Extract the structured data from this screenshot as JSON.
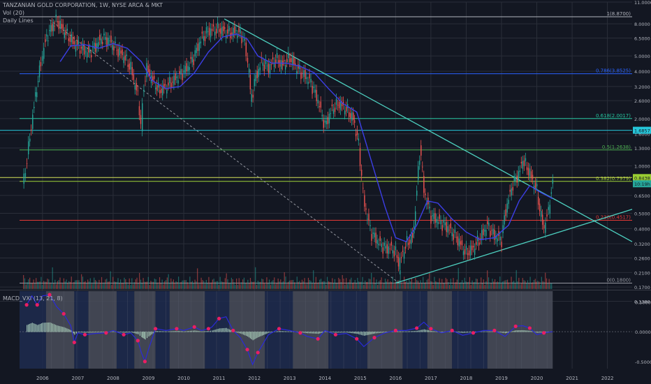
{
  "header": {
    "title": "TANZANIAN GOLD CORPORATION, 1W, NYSE ARCA & MKT",
    "indicator_volume": "Vol (20)",
    "indicator_lines": "Daily Lines"
  },
  "macd_panel": {
    "label": "MACD_VXI (13, 21, 8)"
  },
  "colors": {
    "background": "#131722",
    "grid": "#2a2e39",
    "price_line": "#26a69a",
    "price_down": "#ef5350",
    "ma_line": "#3c3ee6",
    "trendline": "#4dd0c0",
    "dashed": "#9598a1",
    "fib_1": "#b2b5be",
    "fib_786": "#2962ff",
    "fib_618": "#26c6a0",
    "fib_5": "#4caf50",
    "fib_382": "#9acd32",
    "fib_236": "#e53935",
    "fib_0": "#9598a1",
    "macd_bg_blue": "#1e2b4f",
    "macd_bg_gray": "#4a4e5a",
    "macd_hist": "#b8e0c8",
    "macd_line": "#2a2ad8",
    "macd_dot": "#e91e63"
  },
  "chart_data": {
    "type": "line",
    "title": "TANZANIAN GOLD CORPORATION, 1W, NYSE ARCA & MKT",
    "xlabel": "",
    "ylabel": "",
    "scale": "log",
    "ylim": [
      0.165,
      11.0
    ],
    "xlim": [
      2005.35,
      2022.7
    ],
    "x_tick_labels": [
      "2006",
      "2007",
      "2008",
      "2009",
      "2010",
      "2011",
      "2012",
      "2013",
      "2014",
      "2015",
      "2016",
      "2017",
      "2018",
      "2019",
      "2020",
      "2021",
      "2022"
    ],
    "x_ticks": [
      2006,
      2007,
      2008,
      2009,
      2010,
      2011,
      2012,
      2013,
      2014,
      2015,
      2016,
      2017,
      2018,
      2019,
      2020,
      2021,
      2022
    ],
    "y_tick_labels": [
      "11.0000",
      "8.0000",
      "6.5000",
      "5.0000",
      "4.0000",
      "3.2000",
      "2.6000",
      "2.0000",
      "1.6000",
      "1.3000",
      "1.0000",
      "0.8000",
      "0.6500",
      "0.5000",
      "0.4000",
      "0.3200",
      "0.2600",
      "0.2100",
      "0.1700",
      "0.1380"
    ],
    "y_ticks": [
      11.0,
      8.0,
      6.5,
      5.0,
      4.0,
      3.2,
      2.6,
      2.0,
      1.6,
      1.3,
      1.0,
      0.8,
      0.65,
      0.5,
      0.4,
      0.32,
      0.26,
      0.21,
      0.17,
      0.138
    ],
    "price_labels": [
      {
        "label": "1.6857",
        "value": 1.6857
      },
      {
        "label": "0.8438",
        "value": 0.8438
      },
      {
        "label": "10:19h",
        "value": 0.77
      }
    ],
    "fib_levels": [
      {
        "label": "1(8.8700)",
        "value": 8.87,
        "color_key": "fib_1"
      },
      {
        "label": "0.786(3.8525)",
        "value": 3.8525,
        "color_key": "fib_786"
      },
      {
        "label": "0.618(2.0017)",
        "value": 2.0017,
        "color_key": "fib_618"
      },
      {
        "label": "0.5(1.2638)",
        "value": 1.2638,
        "color_key": "fib_5"
      },
      {
        "label": "0.382(0.7979)",
        "value": 0.7979,
        "color_key": "fib_382"
      },
      {
        "label": "0.236(0.4517)",
        "value": 0.4517,
        "color_key": "fib_236"
      },
      {
        "label": "0(0.1800)",
        "value": 0.18,
        "color_key": "fib_0"
      }
    ],
    "support_resistance_lines": [
      1.6857,
      0.8438
    ],
    "price_series": {
      "x": [
        2005.45,
        2005.6,
        2005.8,
        2005.95,
        2006.1,
        2006.25,
        2006.4,
        2006.5,
        2006.7,
        2006.9,
        2007.1,
        2007.3,
        2007.5,
        2007.7,
        2007.9,
        2008.1,
        2008.3,
        2008.5,
        2008.7,
        2008.8,
        2008.85,
        2008.95,
        2009.1,
        2009.3,
        2009.5,
        2009.7,
        2009.9,
        2010.1,
        2010.3,
        2010.5,
        2010.7,
        2010.9,
        2011.1,
        2011.3,
        2011.5,
        2011.7,
        2011.85,
        2011.9,
        2012.0,
        2012.2,
        2012.4,
        2012.6,
        2012.8,
        2013.0,
        2013.2,
        2013.4,
        2013.6,
        2013.8,
        2014.0,
        2014.2,
        2014.4,
        2014.6,
        2014.8,
        2014.95,
        2015.1,
        2015.3,
        2015.5,
        2015.7,
        2015.9,
        2016.0,
        2016.1,
        2016.3,
        2016.5,
        2016.6,
        2016.7,
        2016.8,
        2017.0,
        2017.2,
        2017.4,
        2017.6,
        2017.8,
        2017.9,
        2018.0,
        2018.2,
        2018.4,
        2018.6,
        2018.8,
        2019.0,
        2019.1,
        2019.3,
        2019.5,
        2019.6,
        2019.8,
        2020.0,
        2020.1,
        2020.2,
        2020.35,
        2020.45
      ],
      "values": [
        0.75,
        1.3,
        2.8,
        4.5,
        6.5,
        7.5,
        8.5,
        7.8,
        6.8,
        6.0,
        5.6,
        5.2,
        5.8,
        6.5,
        6.2,
        5.5,
        5.0,
        4.2,
        2.8,
        1.7,
        3.0,
        4.2,
        3.6,
        3.0,
        3.2,
        3.5,
        3.8,
        4.2,
        5.0,
        6.5,
        7.2,
        7.4,
        7.3,
        7.0,
        7.2,
        6.5,
        4.0,
        2.6,
        3.4,
        4.6,
        4.2,
        4.8,
        4.4,
        4.9,
        4.2,
        3.8,
        3.4,
        2.6,
        1.8,
        2.3,
        2.5,
        2.3,
        2.0,
        1.4,
        0.6,
        0.38,
        0.33,
        0.3,
        0.3,
        0.28,
        0.24,
        0.32,
        0.36,
        0.7,
        1.35,
        0.7,
        0.48,
        0.45,
        0.42,
        0.38,
        0.33,
        0.3,
        0.28,
        0.3,
        0.35,
        0.42,
        0.36,
        0.34,
        0.5,
        0.75,
        0.9,
        1.1,
        0.9,
        0.7,
        0.5,
        0.4,
        0.55,
        0.82
      ]
    },
    "ma_series": {
      "x": [
        2006.5,
        2006.8,
        2007.2,
        2007.6,
        2008.0,
        2008.4,
        2008.8,
        2009.1,
        2009.5,
        2009.9,
        2010.3,
        2010.7,
        2011.1,
        2011.5,
        2011.8,
        2012.1,
        2012.5,
        2012.9,
        2013.3,
        2013.7,
        2014.1,
        2014.5,
        2014.9,
        2015.3,
        2015.7,
        2016.0,
        2016.3,
        2016.6,
        2016.9,
        2017.2,
        2017.6,
        2018.0,
        2018.4,
        2018.8,
        2019.2,
        2019.5,
        2019.8,
        2020.1,
        2020.45
      ],
      "values": [
        4.6,
        5.8,
        5.9,
        5.6,
        6.0,
        5.6,
        4.6,
        3.5,
        3.1,
        3.2,
        3.9,
        5.3,
        6.6,
        6.9,
        6.4,
        5.0,
        4.5,
        4.5,
        4.3,
        3.9,
        3.1,
        2.5,
        2.2,
        1.1,
        0.55,
        0.35,
        0.33,
        0.42,
        0.6,
        0.58,
        0.46,
        0.38,
        0.34,
        0.35,
        0.42,
        0.6,
        0.75,
        0.68,
        0.62
      ]
    },
    "trendlines": [
      {
        "name": "",
        "x": [
          2011.15,
          2022.7
        ],
        "values": [
          8.6,
          0.33
        ]
      },
      {
        "name": "",
        "x": [
          2016.0,
          2022.7
        ],
        "values": [
          0.18,
          0.53
        ]
      }
    ],
    "dashed_line": {
      "x": [
        2006.2,
        2016.1
      ],
      "values": [
        8.5,
        0.18
      ]
    },
    "macd": {
      "ylim": [
        -0.62,
        0.68
      ],
      "y_tick_labels": [
        "0.5000",
        "0.0000",
        "-0.5000"
      ],
      "y_ticks": [
        0.5,
        0.0,
        -0.5
      ],
      "line": {
        "x": [
          2005.55,
          2005.7,
          2005.85,
          2006.0,
          2006.2,
          2006.4,
          2006.6,
          2006.8,
          2006.9,
          2007.0,
          2007.2,
          2007.5,
          2007.8,
          2008.0,
          2008.3,
          2008.5,
          2008.7,
          2008.8,
          2008.9,
          2009.0,
          2009.2,
          2009.5,
          2009.8,
          2010.0,
          2010.3,
          2010.5,
          2010.7,
          2010.8,
          2011.0,
          2011.2,
          2011.4,
          2011.6,
          2011.8,
          2011.95,
          2012.1,
          2012.4,
          2012.7,
          2013.0,
          2013.3,
          2013.5,
          2013.8,
          2014.0,
          2014.3,
          2014.6,
          2014.9,
          2015.1,
          2015.4,
          2015.7,
          2016.0,
          2016.3,
          2016.6,
          2016.8,
          2017.0,
          2017.3,
          2017.6,
          2017.9,
          2018.2,
          2018.5,
          2018.8,
          2019.1,
          2019.4,
          2019.6,
          2019.8,
          2020.0,
          2020.2,
          2020.45
        ],
        "values": [
          0.45,
          0.6,
          0.45,
          0.6,
          0.62,
          0.42,
          0.3,
          0.1,
          -0.18,
          -0.02,
          -0.05,
          -0.03,
          -0.02,
          0.02,
          -0.05,
          -0.02,
          -0.15,
          -0.35,
          -0.5,
          -0.3,
          0.05,
          0.02,
          0.05,
          0.02,
          0.08,
          0.02,
          0.05,
          0.08,
          0.22,
          0.25,
          0.02,
          -0.1,
          -0.3,
          -0.55,
          -0.35,
          -0.05,
          0.05,
          0.02,
          -0.02,
          -0.08,
          -0.12,
          0.02,
          -0.05,
          -0.03,
          -0.12,
          -0.25,
          -0.1,
          -0.02,
          0.02,
          0.02,
          0.06,
          0.16,
          0.05,
          -0.02,
          0.02,
          -0.06,
          -0.02,
          0.02,
          0.02,
          -0.08,
          0.09,
          0.1,
          0.06,
          -0.05,
          -0.02,
          0.0
        ]
      },
      "background_bands": [
        {
          "from": 2005.35,
          "to": 2006.1,
          "color_key": "macd_bg_blue"
        },
        {
          "from": 2006.1,
          "to": 2006.9,
          "color_key": "macd_bg_gray"
        },
        {
          "from": 2006.9,
          "to": 2007.3,
          "color_key": "macd_bg_blue"
        },
        {
          "from": 2007.3,
          "to": 2008.1,
          "color_key": "macd_bg_gray"
        },
        {
          "from": 2008.1,
          "to": 2008.6,
          "color_key": "macd_bg_blue"
        },
        {
          "from": 2008.6,
          "to": 2009.2,
          "color_key": "macd_bg_gray"
        },
        {
          "from": 2009.2,
          "to": 2009.6,
          "color_key": "macd_bg_blue"
        },
        {
          "from": 2009.6,
          "to": 2010.6,
          "color_key": "macd_bg_gray"
        },
        {
          "from": 2010.6,
          "to": 2011.3,
          "color_key": "macd_bg_blue"
        },
        {
          "from": 2011.3,
          "to": 2012.3,
          "color_key": "macd_bg_gray"
        },
        {
          "from": 2012.3,
          "to": 2013.1,
          "color_key": "macd_bg_blue"
        },
        {
          "from": 2013.1,
          "to": 2014.1,
          "color_key": "macd_bg_gray"
        },
        {
          "from": 2014.1,
          "to": 2015.2,
          "color_key": "macd_bg_blue"
        },
        {
          "from": 2015.2,
          "to": 2016.2,
          "color_key": "macd_bg_gray"
        },
        {
          "from": 2016.2,
          "to": 2016.9,
          "color_key": "macd_bg_blue"
        },
        {
          "from": 2016.9,
          "to": 2017.6,
          "color_key": "macd_bg_gray"
        },
        {
          "from": 2017.6,
          "to": 2018.6,
          "color_key": "macd_bg_blue"
        },
        {
          "from": 2018.6,
          "to": 2019.4,
          "color_key": "macd_bg_gray"
        },
        {
          "from": 2019.4,
          "to": 2020.45,
          "color_key": "macd_bg_gray"
        }
      ]
    }
  }
}
